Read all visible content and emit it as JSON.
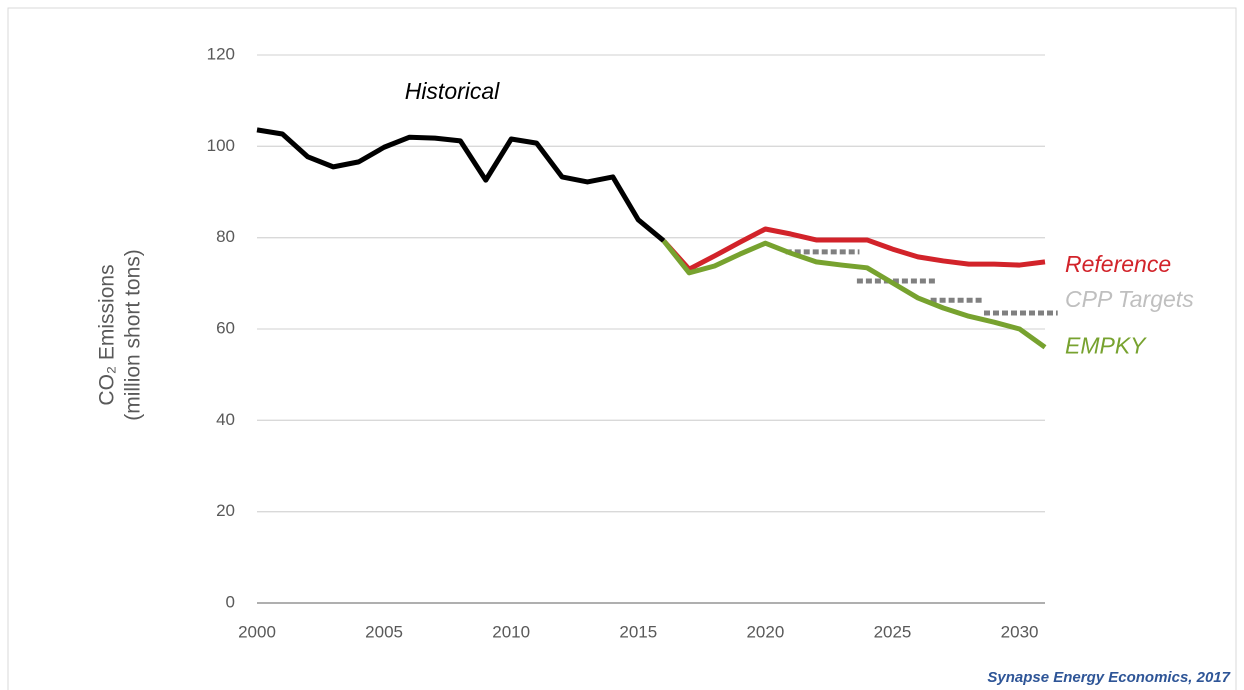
{
  "chart_data": {
    "type": "line",
    "y_label": [
      "CO₂ Emissions",
      "(million short tons)"
    ],
    "source": "Synapse Energy Economics, 2017",
    "xlim": [
      2000,
      2031
    ],
    "xticks": [
      2000,
      2005,
      2010,
      2015,
      2020,
      2025,
      2030
    ],
    "ylim": [
      0,
      120
    ],
    "yticks": [
      0,
      20,
      40,
      60,
      80,
      100,
      120
    ],
    "grid": true,
    "series": [
      {
        "name": "Historical",
        "color": "#000000",
        "x": [
          2000,
          2001,
          2002,
          2003,
          2004,
          2005,
          2006,
          2007,
          2008,
          2009,
          2010,
          2011,
          2012,
          2013,
          2014,
          2015,
          2016
        ],
        "values": [
          103.6,
          102.7,
          97.7,
          95.5,
          96.6,
          99.8,
          102,
          101.8,
          101.2,
          92.6,
          101.6,
          100.7,
          93.3,
          92.2,
          93.3,
          83.9,
          79.3
        ]
      },
      {
        "name": "Reference",
        "color": "#d2232a",
        "x": [
          2016,
          2017,
          2018,
          2019,
          2020,
          2021,
          2022,
          2023,
          2024,
          2025,
          2026,
          2027,
          2028,
          2029,
          2030,
          2031
        ],
        "values": [
          79.3,
          73.1,
          76,
          79,
          81.9,
          80.8,
          79.5,
          79.5,
          79.5,
          77.5,
          75.8,
          74.9,
          74.2,
          74.2,
          74,
          74.7
        ]
      },
      {
        "name": "EMPKY",
        "color": "#77a22f",
        "x": [
          2016,
          2017,
          2018,
          2019,
          2020,
          2021,
          2022,
          2023,
          2024,
          2025,
          2026,
          2027,
          2028,
          2029,
          2030,
          2031
        ],
        "values": [
          79.3,
          72.3,
          73.8,
          76.4,
          78.8,
          76.6,
          74.7,
          74,
          73.4,
          70.1,
          66.8,
          64.6,
          62.8,
          61.5,
          60,
          56
        ]
      }
    ],
    "targets": {
      "name": "CPP Targets",
      "color": "#808080",
      "segments": [
        {
          "x": [
            2020.8,
            2023.7
          ],
          "value": 76.9
        },
        {
          "x": [
            2023.6,
            2026.7
          ],
          "value": 70.5
        },
        {
          "x": [
            2026.5,
            2028.6
          ],
          "value": 66.3
        },
        {
          "x": [
            2028.6,
            2031.5
          ],
          "value": 63.5
        }
      ]
    }
  }
}
